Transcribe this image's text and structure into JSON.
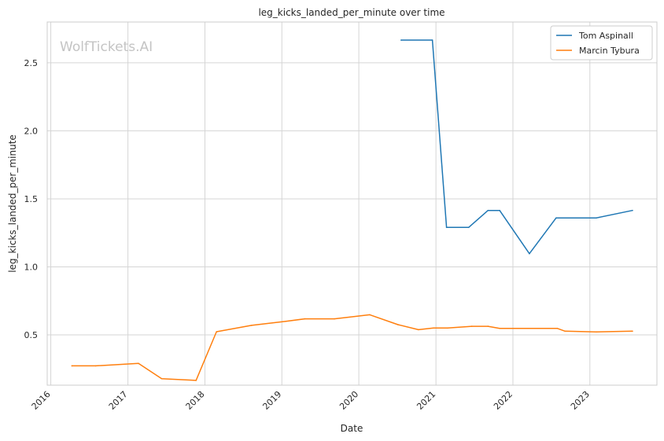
{
  "chart_data": {
    "type": "line",
    "title": "leg_kicks_landed_per_minute over time",
    "xlabel": "Date",
    "ylabel": "leg_kicks_landed_per_minute",
    "watermark": "WolfTickets.AI",
    "xlim": [
      "2015-12-15",
      "2023-11-15"
    ],
    "ylim": [
      0.13,
      2.8
    ],
    "x_ticks": [
      "2016",
      "2017",
      "2018",
      "2019",
      "2020",
      "2021",
      "2022",
      "2023"
    ],
    "y_ticks": [
      "0.5",
      "1.0",
      "1.5",
      "2.0",
      "2.5"
    ],
    "grid": true,
    "legend_position": "top-right",
    "series": [
      {
        "name": "Tom Aspinall",
        "color": "#1f77b4",
        "points": [
          [
            "2020-07-20",
            2.667
          ],
          [
            "2020-12-15",
            2.667
          ],
          [
            "2021-02-20",
            1.29
          ],
          [
            "2021-06-05",
            1.29
          ],
          [
            "2021-09-05",
            1.415
          ],
          [
            "2021-10-30",
            1.415
          ],
          [
            "2022-03-20",
            1.097
          ],
          [
            "2022-07-25",
            1.36
          ],
          [
            "2023-02-01",
            1.36
          ],
          [
            "2023-07-22",
            1.415
          ]
        ]
      },
      {
        "name": "Marcin Tybura",
        "color": "#ff7f0e",
        "points": [
          [
            "2016-04-10",
            0.272
          ],
          [
            "2016-08-01",
            0.272
          ],
          [
            "2017-02-20",
            0.29
          ],
          [
            "2017-06-10",
            0.178
          ],
          [
            "2017-11-20",
            0.165
          ],
          [
            "2018-02-25",
            0.523
          ],
          [
            "2018-08-10",
            0.57
          ],
          [
            "2019-01-20",
            0.6
          ],
          [
            "2019-04-20",
            0.618
          ],
          [
            "2019-09-07",
            0.618
          ],
          [
            "2020-02-22",
            0.648
          ],
          [
            "2020-07-05",
            0.575
          ],
          [
            "2020-10-10",
            0.538
          ],
          [
            "2020-12-20",
            0.55
          ],
          [
            "2021-02-25",
            0.55
          ],
          [
            "2021-06-20",
            0.563
          ],
          [
            "2021-09-05",
            0.563
          ],
          [
            "2021-10-30",
            0.548
          ],
          [
            "2022-07-30",
            0.548
          ],
          [
            "2022-09-05",
            0.527
          ],
          [
            "2023-02-01",
            0.522
          ],
          [
            "2023-07-22",
            0.527
          ]
        ]
      }
    ]
  }
}
